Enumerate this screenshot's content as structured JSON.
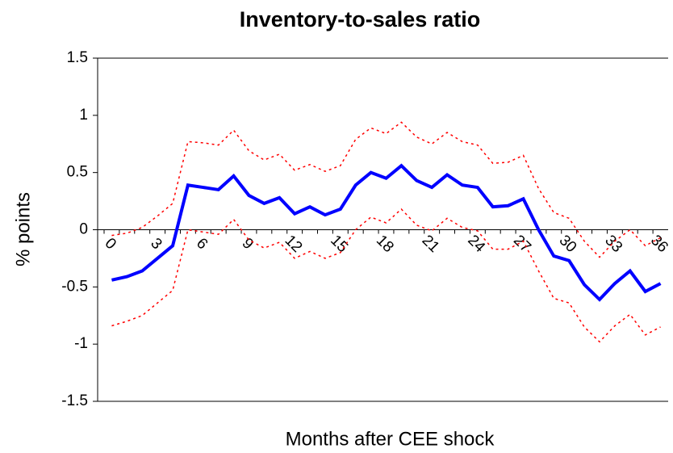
{
  "chart_data": {
    "type": "line",
    "title": "Inventory-to-sales ratio",
    "x_label": "Months after CEE shock",
    "y_label": "% points",
    "categories": [
      "0",
      null,
      null,
      "3",
      null,
      null,
      "6",
      null,
      null,
      "9",
      null,
      null,
      "12",
      null,
      null,
      "15",
      null,
      null,
      "18",
      null,
      null,
      "21",
      null,
      null,
      "24",
      null,
      null,
      "27",
      null,
      null,
      "30",
      null,
      null,
      "33",
      null,
      null,
      "36"
    ],
    "series": [
      {
        "color": "#ff0000",
        "dash": true,
        "values": [
          -0.05,
          -0.03,
          0.02,
          0.12,
          0.23,
          0.77,
          0.76,
          0.74,
          0.87,
          0.69,
          0.61,
          0.66,
          0.52,
          0.57,
          0.51,
          0.56,
          0.79,
          0.89,
          0.84,
          0.94,
          0.81,
          0.75,
          0.85,
          0.77,
          0.74,
          0.58,
          0.59,
          0.65,
          0.36,
          0.15,
          0.1,
          -0.1,
          -0.24,
          -0.1,
          0.0,
          -0.14,
          -0.07
        ]
      },
      {
        "color": "#ff0000",
        "dash": true,
        "values": [
          -0.84,
          -0.8,
          -0.75,
          -0.64,
          -0.53,
          0.0,
          -0.02,
          -0.04,
          0.09,
          -0.09,
          -0.16,
          -0.11,
          -0.25,
          -0.19,
          -0.25,
          -0.2,
          0.0,
          0.11,
          0.06,
          0.18,
          0.04,
          -0.01,
          0.1,
          0.02,
          -0.01,
          -0.17,
          -0.17,
          -0.1,
          -0.36,
          -0.6,
          -0.64,
          -0.85,
          -0.98,
          -0.84,
          -0.74,
          -0.92,
          -0.85
        ]
      },
      {
        "color": "#0000ff",
        "dash": false,
        "values": [
          -0.44,
          -0.41,
          -0.36,
          -0.25,
          -0.14,
          0.39,
          0.37,
          0.35,
          0.47,
          0.3,
          0.23,
          0.28,
          0.14,
          0.2,
          0.13,
          0.18,
          0.39,
          0.5,
          0.45,
          0.56,
          0.43,
          0.37,
          0.48,
          0.39,
          0.37,
          0.2,
          0.21,
          0.27,
          0.0,
          -0.23,
          -0.27,
          -0.48,
          -0.61,
          -0.47,
          -0.36,
          -0.54,
          -0.47
        ]
      }
    ],
    "ylim": [
      -1.5,
      1.5
    ],
    "yticks": [
      1.5,
      1,
      0.5,
      0,
      -0.5,
      -1,
      -1.5
    ],
    "grid": false
  }
}
